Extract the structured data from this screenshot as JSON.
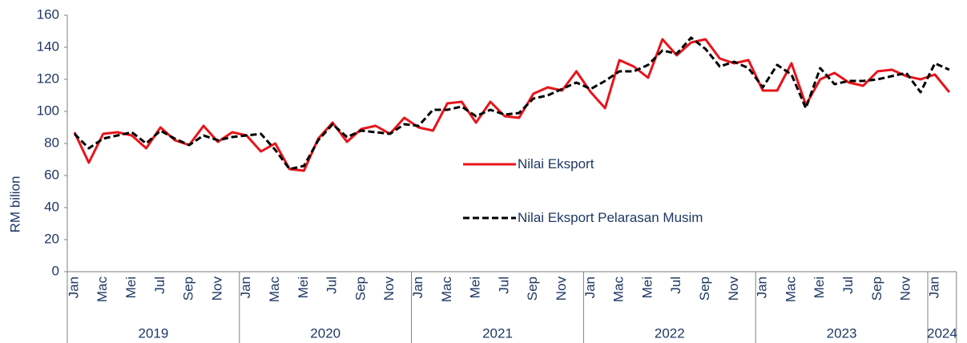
{
  "chart_data": {
    "type": "line",
    "y_axis_label": "RM bilion",
    "categories": [
      "Jan",
      null,
      "Mac",
      null,
      "Mei",
      null,
      "Jul",
      null,
      "Sep",
      null,
      "Nov",
      null,
      "Jan",
      null,
      "Mac",
      null,
      "Mei",
      null,
      "Jul",
      null,
      "Sep",
      null,
      "Nov",
      null,
      "Jan",
      null,
      "Mac",
      null,
      "Mei",
      null,
      "Jul",
      null,
      "Sep",
      null,
      "Nov",
      null,
      "Jan",
      null,
      "Mac",
      null,
      "Mei",
      null,
      "Jul",
      null,
      "Sep",
      null,
      "Nov",
      null,
      "Jan",
      null,
      "Mac",
      null,
      "Mei",
      null,
      "Jul",
      null,
      "Sep",
      null,
      "Nov",
      null,
      "Jan",
      null
    ],
    "year_groups": [
      {
        "label": "2019",
        "size": 12
      },
      {
        "label": "2020",
        "size": 12
      },
      {
        "label": "2021",
        "size": 12
      },
      {
        "label": "2022",
        "size": 12
      },
      {
        "label": "2023",
        "size": 12
      },
      {
        "label": "2024",
        "size": 2
      }
    ],
    "series": [
      {
        "name": "Nilai Eksport",
        "color": "#e8141b",
        "dash": false,
        "values": [
          87,
          68,
          86,
          87,
          85,
          77,
          90,
          82,
          79,
          91,
          81,
          87,
          85,
          75,
          80,
          64,
          63,
          83,
          93,
          81,
          89,
          91,
          86,
          96,
          90,
          88,
          105,
          106,
          93,
          106,
          97,
          96,
          111,
          115,
          113,
          125,
          112,
          102,
          132,
          128,
          121,
          145,
          135,
          143,
          145,
          133,
          130,
          132,
          113,
          113,
          130,
          104,
          120,
          124,
          118,
          116,
          125,
          126,
          122,
          120,
          123,
          112
        ]
      },
      {
        "name": "Nilai Eksport Pelarasan Musim",
        "color": "#000000",
        "dash": true,
        "values": [
          86,
          77,
          83,
          85,
          87,
          80,
          88,
          83,
          79,
          85,
          82,
          84,
          85,
          86,
          76,
          64,
          66,
          82,
          92,
          84,
          88,
          87,
          86,
          92,
          91,
          101,
          101,
          103,
          97,
          101,
          98,
          99,
          108,
          110,
          114,
          118,
          114,
          119,
          125,
          125,
          129,
          138,
          136,
          146,
          139,
          128,
          131,
          127,
          115,
          129,
          123,
          102,
          127,
          117,
          119,
          119,
          120,
          122,
          124,
          112,
          130,
          126
        ]
      }
    ],
    "ylim": [
      0,
      160
    ],
    "yticks": [
      0,
      20,
      40,
      60,
      80,
      100,
      120,
      140,
      160
    ],
    "grid": false
  }
}
